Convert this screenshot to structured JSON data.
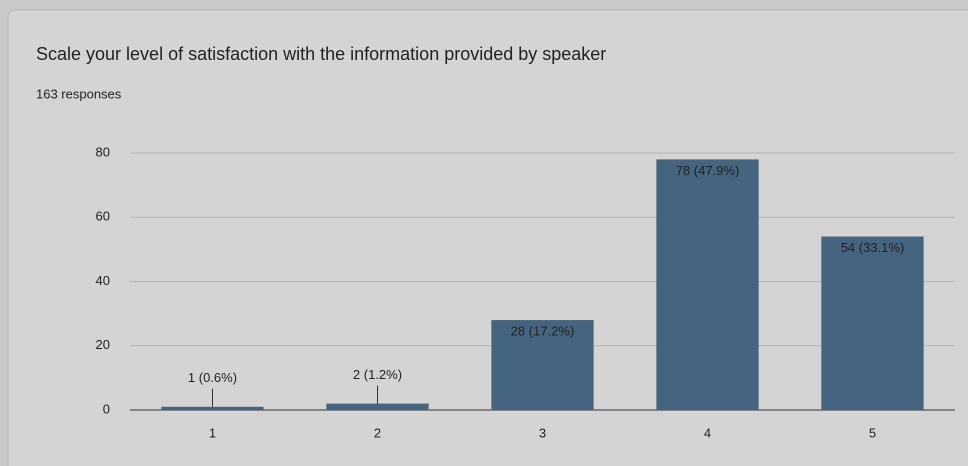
{
  "chart_data": {
    "type": "bar",
    "title": "Scale your level of satisfaction with the information provided by speaker",
    "subtitle": "163 responses",
    "categories": [
      "1",
      "2",
      "3",
      "4",
      "5"
    ],
    "values": [
      1,
      2,
      28,
      78,
      54
    ],
    "value_labels": [
      "1 (0.6%)",
      "2 (1.2%)",
      "28 (17.2%)",
      "78 (47.9%)",
      "54 (33.1%)"
    ],
    "color": "#44647f",
    "ylim": [
      0,
      80
    ],
    "yticks": [
      0,
      20,
      40,
      60,
      80
    ],
    "grid": true
  }
}
